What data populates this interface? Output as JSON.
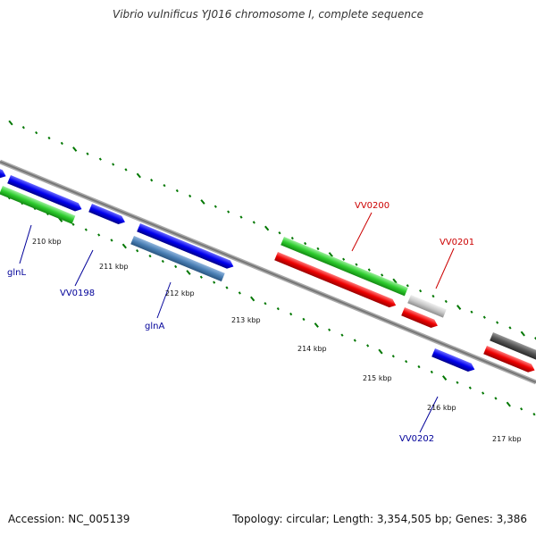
{
  "title": "Vibrio vulnificus YJ016 chromosome I, complete sequence",
  "footer": {
    "accession": "Accession: NC_005139",
    "stats": "Topology: circular; Length: 3,354,505 bp; Genes: 3,386"
  },
  "colors": {
    "forward_gene": "#00f",
    "reverse_gene": "#00f",
    "green_gene": "#2ecc2e",
    "red_gene": "#ee0000",
    "steel_gene": "#4a7fb5",
    "gray_gene": "#c8c8c8",
    "dark_gene": "#555555",
    "ticks": "#007700",
    "backbone": "#888888",
    "label_blue": "#000099",
    "label_red": "#cc0000"
  },
  "ticks": [
    {
      "label": "210 kbp"
    },
    {
      "label": "211 kbp"
    },
    {
      "label": "212 kbp"
    },
    {
      "label": "213 kbp"
    },
    {
      "label": "214 kbp"
    },
    {
      "label": "215 kbp"
    },
    {
      "label": "216 kbp"
    },
    {
      "label": "217 kbp"
    }
  ],
  "gene_labels": [
    {
      "name": "glnL",
      "color": "blue"
    },
    {
      "name": "VV0198",
      "color": "blue"
    },
    {
      "name": "glnA",
      "color": "blue"
    },
    {
      "name": "VV0200",
      "color": "red"
    },
    {
      "name": "VV0201",
      "color": "red"
    },
    {
      "name": "VV0202",
      "color": "blue"
    }
  ]
}
